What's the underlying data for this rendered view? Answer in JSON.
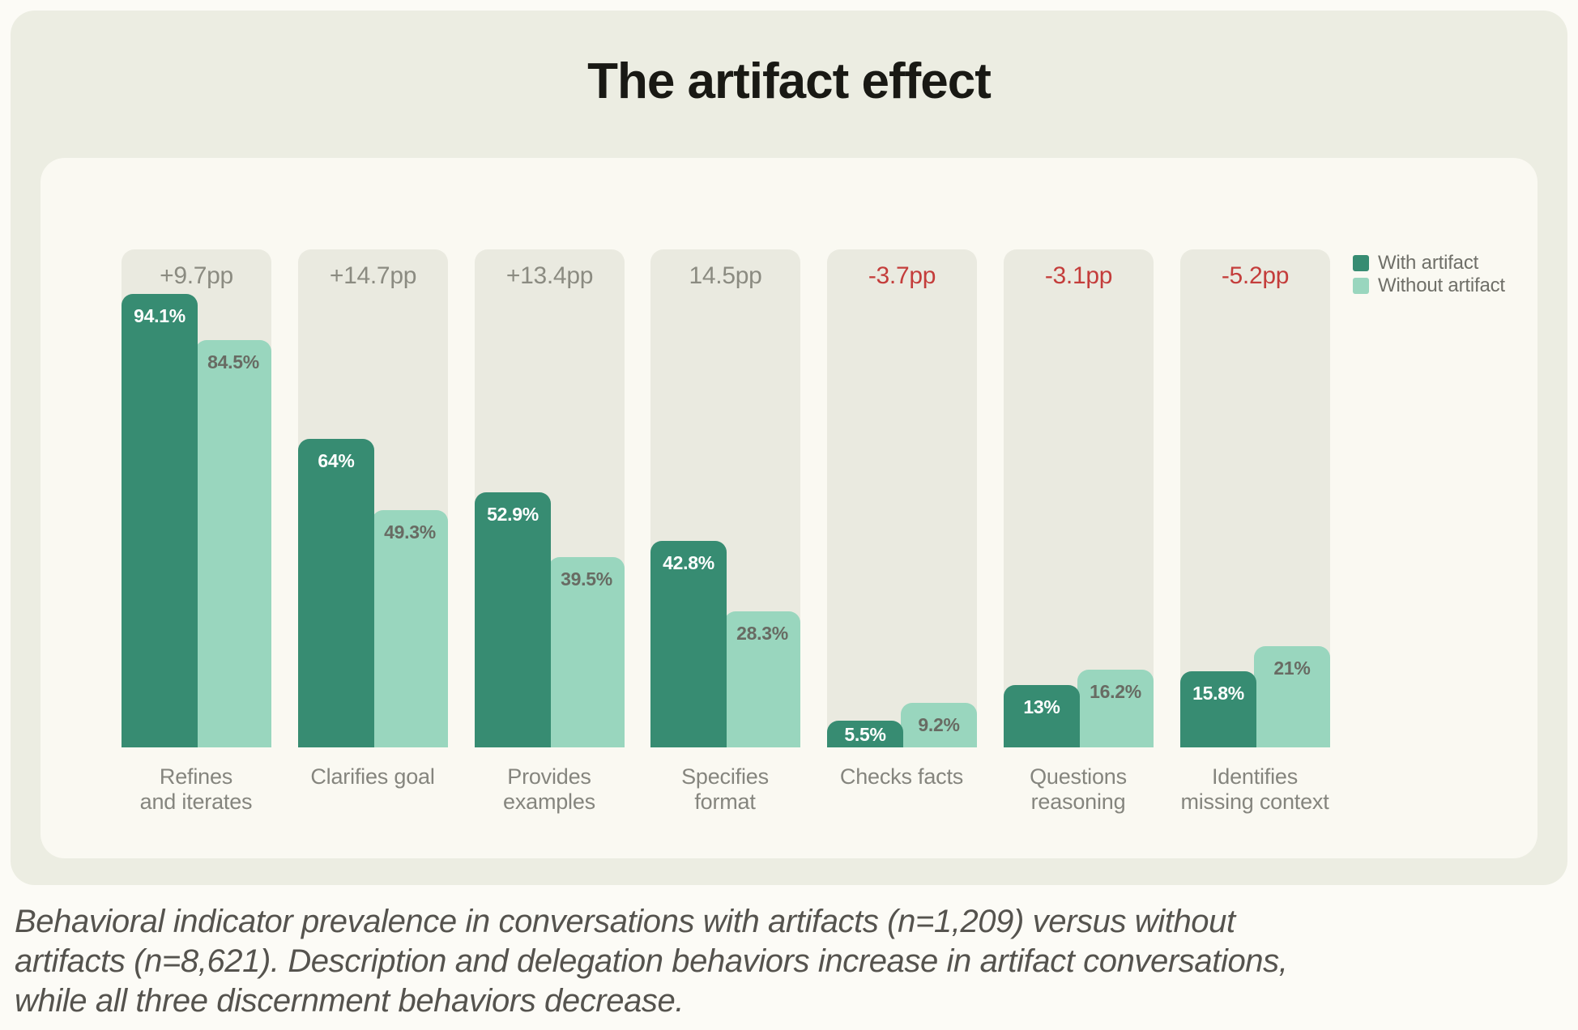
{
  "page": {
    "title": "The artifact effect"
  },
  "colors": {
    "page_bg": "#FCFBF6",
    "card_bg": "#ECEDE2",
    "surface_bg": "#FAF9F2",
    "group_panel_bg": "#EAEAE0",
    "with_artifact": "#378C72",
    "without_artifact": "#99D6BE",
    "delta_positive_text": "#8B8B81",
    "delta_negative_text": "#C43D3B",
    "value_label_on_dark": "#FFFFFF",
    "value_label_on_light": "#686B63",
    "category_label_text": "#85857E",
    "legend_text": "#6F6F68",
    "caption_text": "#55534E",
    "title_text": "#191914"
  },
  "chart_data": {
    "type": "bar",
    "title": "The artifact effect",
    "unit": "%",
    "ylim": [
      0,
      100
    ],
    "grid": false,
    "legend_position": "top-right",
    "categories": [
      [
        "Refines",
        "and iterates"
      ],
      [
        "Clarifies goal"
      ],
      [
        "Provides",
        "examples"
      ],
      [
        "Specifies",
        "format"
      ],
      [
        "Checks facts"
      ],
      [
        "Questions",
        "reasoning"
      ],
      [
        "Identifies",
        "missing context"
      ]
    ],
    "series": [
      {
        "name": "With artifact",
        "color_key": "with_artifact",
        "values": [
          94.1,
          64,
          52.9,
          42.8,
          5.5,
          13,
          15.8
        ],
        "display_labels": [
          "94.1%",
          "64%",
          "52.9%",
          "42.8%",
          "5.5%",
          "13%",
          "15.8%"
        ]
      },
      {
        "name": "Without artifact",
        "color_key": "without_artifact",
        "values": [
          84.5,
          49.3,
          39.5,
          28.3,
          9.2,
          16.2,
          21
        ],
        "display_labels": [
          "84.5%",
          "49.3%",
          "39.5%",
          "28.3%",
          "9.2%",
          "16.2%",
          "21%"
        ]
      }
    ],
    "delta_labels": [
      {
        "text": "+9.7pp",
        "tone": "positive"
      },
      {
        "text": "+14.7pp",
        "tone": "positive"
      },
      {
        "text": "+13.4pp",
        "tone": "positive"
      },
      {
        "text": "14.5pp",
        "tone": "positive"
      },
      {
        "text": "-3.7pp",
        "tone": "negative"
      },
      {
        "text": "-3.1pp",
        "tone": "negative"
      },
      {
        "text": "-5.2pp",
        "tone": "negative"
      }
    ]
  },
  "legend": {
    "items": [
      {
        "label": "With artifact",
        "color_key": "with_artifact"
      },
      {
        "label": "Without artifact",
        "color_key": "without_artifact"
      }
    ]
  },
  "caption": {
    "lines": [
      "Behavioral indicator prevalence in conversations with artifacts (n=1,209) versus without",
      "artifacts (n=8,621). Description and delegation behaviors increase in artifact conversations,",
      "while all three discernment behaviors decrease."
    ]
  }
}
